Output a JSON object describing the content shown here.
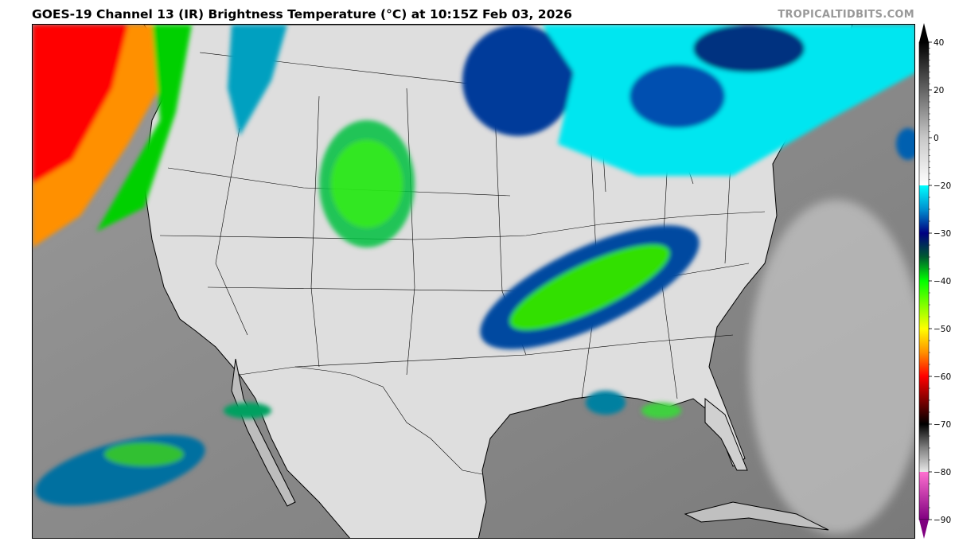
{
  "header": {
    "title": "GOES-19 Channel 13 (IR) Brightness Temperature (°C) at 10:15Z Feb 03, 2026",
    "credit": "TROPICALTIDBITS.COM"
  },
  "colorbar": {
    "ticks": [
      40,
      20,
      0,
      -20,
      -30,
      -40,
      -50,
      -60,
      -70,
      -80,
      -90
    ],
    "tick_labels": [
      "40",
      "20",
      "0",
      "−20",
      "−30",
      "−40",
      "−50",
      "−60",
      "−70",
      "−80",
      "−90"
    ],
    "range": [
      -90,
      40
    ],
    "extend": "both",
    "colormap": [
      {
        "t": 40,
        "color": "#000000"
      },
      {
        "t": 0,
        "color": "#c8c8c8"
      },
      {
        "t": -20,
        "color": "#ffffff"
      },
      {
        "t": -20,
        "color": "#00ffff"
      },
      {
        "t": -25,
        "color": "#0090d0"
      },
      {
        "t": -30,
        "color": "#000080"
      },
      {
        "t": -35,
        "color": "#005a30"
      },
      {
        "t": -40,
        "color": "#00ff00"
      },
      {
        "t": -50,
        "color": "#ffff00"
      },
      {
        "t": -55,
        "color": "#ff9000"
      },
      {
        "t": -60,
        "color": "#ff0000"
      },
      {
        "t": -65,
        "color": "#800000"
      },
      {
        "t": -70,
        "color": "#000000"
      },
      {
        "t": -75,
        "color": "#808080"
      },
      {
        "t": -80,
        "color": "#e8e8e8"
      },
      {
        "t": -80,
        "color": "#ff70d0"
      },
      {
        "t": -90,
        "color": "#800080"
      }
    ]
  },
  "map": {
    "region": "Continental United States",
    "land_color": "#e6e6e6",
    "ocean_color": "#8c8c8c"
  }
}
